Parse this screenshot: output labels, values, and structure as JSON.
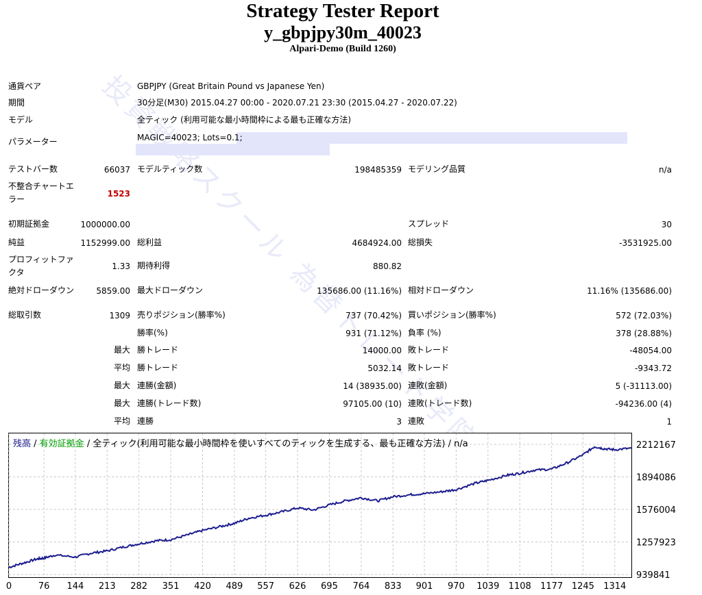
{
  "report": {
    "title": "Strategy Tester Report",
    "subtitle": "y_gbpjpy30m_40023",
    "build": "Alpari-Demo (Build 1260)"
  },
  "info": {
    "pair_label": "通貨ペア",
    "pair_value": "GBPJPY (Great Britain Pound vs Japanese Yen)",
    "period_label": "期間",
    "period_value": "30分足(M30) 2015.04.27 00:00 - 2020.07.21 23:30 (2015.04.27 - 2020.07.22)",
    "model_label": "モデル",
    "model_value": "全ティック (利用可能な最小時間枠による最も正確な方法)",
    "params_label": "パラメーター",
    "params_value": "MAGIC=40023; Lots=0.1;"
  },
  "stats": {
    "test_bars_label": "テストバー数",
    "test_bars": "66037",
    "model_ticks_label": "モデルティック数",
    "model_ticks": "198485359",
    "modeling_quality_label": "モデリング品質",
    "modeling_quality": "n/a",
    "mismatch_label_1": "不整合チャートエ",
    "mismatch_label_2": "ラー",
    "mismatch": "1523",
    "initial_deposit_label": "初期証拠金",
    "initial_deposit": "1000000.00",
    "spread_label": "スプレッド",
    "spread": "30",
    "net_profit_label": "純益",
    "net_profit": "1152999.00",
    "gross_profit_label": "総利益",
    "gross_profit": "4684924.00",
    "gross_loss_label": "総損失",
    "gross_loss": "-3531925.00",
    "profit_factor_label_1": "プロフィットファ",
    "profit_factor_label_2": "クタ",
    "profit_factor": "1.33",
    "expected_payoff_label": "期待利得",
    "expected_payoff": "880.82",
    "abs_dd_label": "絶対ドローダウン",
    "abs_dd": "5859.00",
    "max_dd_label": "最大ドローダウン",
    "max_dd": "135686.00 (11.16%)",
    "rel_dd_label": "相対ドローダウン",
    "rel_dd": "11.16% (135686.00)",
    "total_trades_label": "総取引数",
    "total_trades": "1309",
    "short_label": "売りポジション(勝率%)",
    "short": "737 (70.42%)",
    "long_label": "買いポジション(勝率%)",
    "long": "572 (72.03%)",
    "win_rate_label": "勝率(%)",
    "win_rate": "931 (71.12%)",
    "loss_rate_label": "負率 (%)",
    "loss_rate": "378 (28.88%)",
    "max_label": "最大",
    "avg_label": "平均",
    "largest_win_label": "勝トレード",
    "largest_win": "14000.00",
    "largest_loss_label": "敗トレード",
    "largest_loss": "-48054.00",
    "avg_win_label": "勝トレード",
    "avg_win": "5032.14",
    "avg_loss_label": "敗トレード",
    "avg_loss": "-9343.72",
    "max_consec_wins_money_label": "連勝(金額)",
    "max_consec_wins_money": "14 (38935.00)",
    "max_consec_losses_money_label": "連敗(金額)",
    "max_consec_losses_money": "5 (-31113.00)",
    "max_consec_profit_label": "連勝(トレード数)",
    "max_consec_profit": "97105.00 (10)",
    "max_consec_loss_label": "連敗(トレード数)",
    "max_consec_loss": "-94236.00 (4)",
    "avg_consec_wins_label": "連勝",
    "avg_consec_wins": "3",
    "avg_consec_losses_label": "連敗",
    "avg_consec_losses": "1"
  },
  "watermark": "投資戦略スクール 為替トレード学院",
  "chart_legend": {
    "balance": "残高",
    "sep1": " / ",
    "equity": "有効証拠金",
    "sep2": " / ",
    "rest": "全ティック(利用可能な最小時間枠を使いすべてのティックを生成する、最も正確な方法) / n/a"
  },
  "colors": {
    "balance": "#1a1a8c",
    "equity": "#00a000",
    "line": "#1c1c8f",
    "grid": "#c8c8c8",
    "highlight": "#e3e5fb",
    "error": "#c00000"
  },
  "chart_data": {
    "type": "line",
    "x_ticks": [
      0,
      76,
      144,
      213,
      282,
      351,
      420,
      489,
      557,
      626,
      695,
      764,
      833,
      901,
      970,
      1039,
      1108,
      1177,
      1245,
      1314
    ],
    "y_ticks": [
      "2212167",
      "1894086",
      "1576004",
      "1257923",
      "939841"
    ],
    "ylim": [
      939841,
      2212167
    ],
    "xlim": [
      0,
      1350
    ],
    "series": [
      {
        "points": [
          [
            0,
            1010000
          ],
          [
            30,
            1050000
          ],
          [
            60,
            1090000
          ],
          [
            76,
            1100000
          ],
          [
            100,
            1130000
          ],
          [
            144,
            1110000
          ],
          [
            180,
            1150000
          ],
          [
            213,
            1170000
          ],
          [
            250,
            1210000
          ],
          [
            282,
            1240000
          ],
          [
            320,
            1270000
          ],
          [
            351,
            1280000
          ],
          [
            390,
            1330000
          ],
          [
            420,
            1370000
          ],
          [
            460,
            1410000
          ],
          [
            489,
            1440000
          ],
          [
            520,
            1490000
          ],
          [
            557,
            1520000
          ],
          [
            590,
            1550000
          ],
          [
            626,
            1590000
          ],
          [
            660,
            1570000
          ],
          [
            695,
            1620000
          ],
          [
            730,
            1660000
          ],
          [
            764,
            1690000
          ],
          [
            800,
            1660000
          ],
          [
            833,
            1700000
          ],
          [
            870,
            1720000
          ],
          [
            901,
            1730000
          ],
          [
            940,
            1750000
          ],
          [
            970,
            1770000
          ],
          [
            1010,
            1830000
          ],
          [
            1039,
            1860000
          ],
          [
            1080,
            1910000
          ],
          [
            1108,
            1930000
          ],
          [
            1140,
            1960000
          ],
          [
            1177,
            1970000
          ],
          [
            1210,
            2030000
          ],
          [
            1245,
            2110000
          ],
          [
            1270,
            2190000
          ],
          [
            1290,
            2170000
          ],
          [
            1314,
            2160000
          ],
          [
            1350,
            2175000
          ]
        ]
      }
    ]
  }
}
